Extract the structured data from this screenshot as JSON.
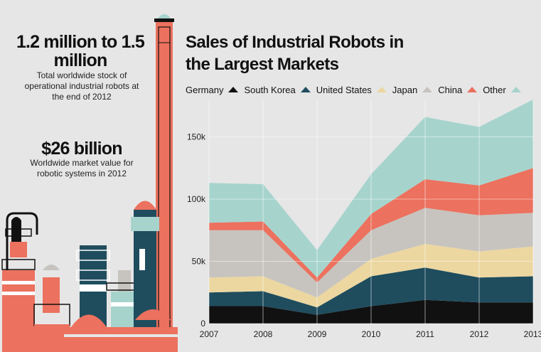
{
  "stats": [
    {
      "value": "1.2 million to 1.5 million",
      "description": "Total worldwide stock of operational industrial robots at the end of 2012"
    },
    {
      "value": "$26 billion",
      "description": "Worldwide market value for robotic systems in 2012"
    }
  ],
  "colors": {
    "background": "#e6e6e6",
    "Germany": "#111111",
    "South Korea": "#1f4d5e",
    "United States": "#ecd7a1",
    "Japan": "#c7c4bf",
    "China": "#ec715e",
    "Other": "#a6d4cd"
  },
  "chart_data": {
    "type": "area",
    "title": "Sales of Industrial Robots in the Largest Markets",
    "x": [
      "2007",
      "2008",
      "2009",
      "2010",
      "2011",
      "2012",
      "2013"
    ],
    "yticks": [
      "0",
      "50k",
      "100k",
      "150k"
    ],
    "ylim": [
      0,
      180000
    ],
    "stacked": true,
    "grid": true,
    "legend_position": "top",
    "series": [
      {
        "name": "Germany",
        "values": [
          14000,
          14000,
          7000,
          14000,
          19000,
          17000,
          17000
        ]
      },
      {
        "name": "South Korea",
        "values": [
          11000,
          12000,
          6000,
          24000,
          26000,
          20000,
          21000
        ]
      },
      {
        "name": "United States",
        "values": [
          12000,
          12000,
          8000,
          14000,
          19000,
          21000,
          24000
        ]
      },
      {
        "name": "Japan",
        "values": [
          38000,
          37000,
          12000,
          23000,
          29000,
          29000,
          27000
        ]
      },
      {
        "name": "China",
        "values": [
          6000,
          7000,
          4000,
          13000,
          23000,
          24000,
          36000
        ]
      },
      {
        "name": "Other",
        "values": [
          32000,
          30000,
          22000,
          32000,
          50000,
          47000,
          55000
        ]
      }
    ]
  }
}
